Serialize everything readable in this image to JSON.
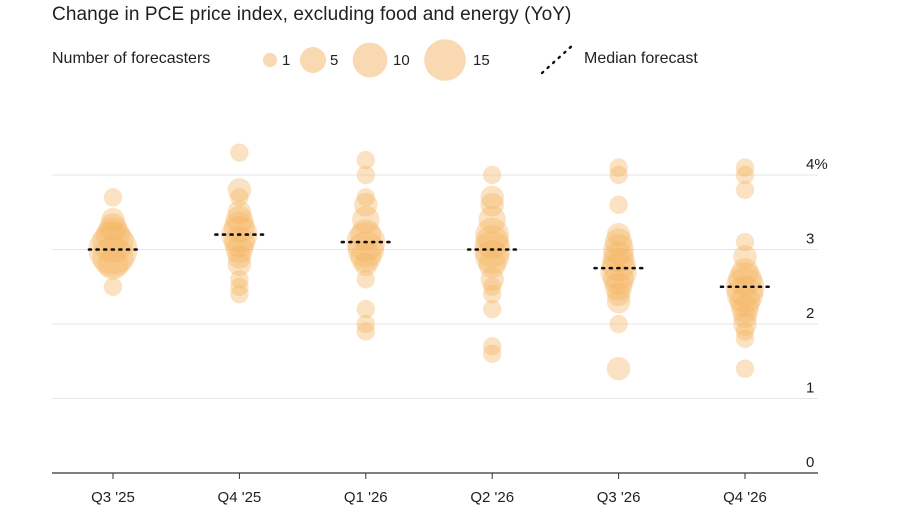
{
  "title": "Change in PCE price index, excluding food and energy (YoY)",
  "legend": {
    "size_label": "Number of forecasters",
    "sizes": [
      {
        "label": "1",
        "value": 1
      },
      {
        "label": "5",
        "value": 5
      },
      {
        "label": "10",
        "value": 10
      },
      {
        "label": "15",
        "value": 15
      }
    ],
    "median_label": "Median forecast"
  },
  "colors": {
    "bubble": "#f5b25e",
    "legend_bubble": "#f8d9b2",
    "grid": "#e6e6e6",
    "axis": "#333333",
    "median": "#111111"
  },
  "chart_data": {
    "type": "scatter",
    "title": "Change in PCE price index, excluding food and energy (YoY)",
    "xlabel": "",
    "ylabel": "",
    "categories": [
      "Q3 '25",
      "Q4 '25",
      "Q1 '26",
      "Q2 '26",
      "Q3 '26",
      "Q4 '26"
    ],
    "ylim": [
      0,
      4
    ],
    "yticks": [
      {
        "value": 0,
        "label": "0"
      },
      {
        "value": 1,
        "label": "1"
      },
      {
        "value": 2,
        "label": "2"
      },
      {
        "value": 3,
        "label": "3"
      },
      {
        "value": 4,
        "label": "4%"
      }
    ],
    "grid": true,
    "medians": [
      3.0,
      3.2,
      3.1,
      3.0,
      2.75,
      2.5
    ],
    "points": [
      [
        [
          3.7,
          1
        ],
        [
          3.4,
          2
        ],
        [
          3.3,
          3
        ],
        [
          3.2,
          5
        ],
        [
          3.1,
          8
        ],
        [
          3.0,
          12
        ],
        [
          2.9,
          8
        ],
        [
          2.8,
          4
        ],
        [
          2.5,
          1
        ]
      ],
      [
        [
          4.3,
          1
        ],
        [
          3.8,
          2
        ],
        [
          3.7,
          1
        ],
        [
          3.5,
          2
        ],
        [
          3.4,
          3
        ],
        [
          3.3,
          4
        ],
        [
          3.2,
          6
        ],
        [
          3.1,
          4
        ],
        [
          3.0,
          3
        ],
        [
          2.9,
          2
        ],
        [
          2.8,
          2
        ],
        [
          2.6,
          1
        ],
        [
          2.5,
          1
        ],
        [
          2.4,
          1
        ]
      ],
      [
        [
          4.2,
          1
        ],
        [
          4.0,
          1
        ],
        [
          3.7,
          1
        ],
        [
          3.6,
          2
        ],
        [
          3.4,
          3
        ],
        [
          3.2,
          4
        ],
        [
          3.1,
          7
        ],
        [
          3.0,
          6
        ],
        [
          2.9,
          4
        ],
        [
          2.8,
          2
        ],
        [
          2.6,
          1
        ],
        [
          2.2,
          1
        ],
        [
          2.0,
          1
        ],
        [
          1.9,
          1
        ]
      ],
      [
        [
          4.0,
          1
        ],
        [
          3.7,
          2
        ],
        [
          3.6,
          2
        ],
        [
          3.4,
          3
        ],
        [
          3.2,
          5
        ],
        [
          3.1,
          5
        ],
        [
          3.0,
          6
        ],
        [
          2.9,
          5
        ],
        [
          2.8,
          3
        ],
        [
          2.6,
          2
        ],
        [
          2.5,
          1
        ],
        [
          2.4,
          1
        ],
        [
          2.2,
          1
        ],
        [
          1.7,
          1
        ],
        [
          1.6,
          1
        ]
      ],
      [
        [
          4.1,
          1
        ],
        [
          4.0,
          1
        ],
        [
          3.6,
          1
        ],
        [
          3.2,
          2
        ],
        [
          3.1,
          3
        ],
        [
          3.0,
          4
        ],
        [
          2.9,
          4
        ],
        [
          2.8,
          5
        ],
        [
          2.7,
          6
        ],
        [
          2.6,
          4
        ],
        [
          2.5,
          3
        ],
        [
          2.4,
          2
        ],
        [
          2.3,
          2
        ],
        [
          2.0,
          1
        ],
        [
          1.4,
          2
        ]
      ],
      [
        [
          4.1,
          1
        ],
        [
          4.0,
          1
        ],
        [
          3.8,
          1
        ],
        [
          3.1,
          1
        ],
        [
          2.9,
          2
        ],
        [
          2.7,
          3
        ],
        [
          2.6,
          5
        ],
        [
          2.5,
          7
        ],
        [
          2.4,
          6
        ],
        [
          2.3,
          4
        ],
        [
          2.2,
          3
        ],
        [
          2.1,
          2
        ],
        [
          2.0,
          2
        ],
        [
          1.9,
          1
        ],
        [
          1.8,
          1
        ],
        [
          1.4,
          1
        ]
      ]
    ]
  }
}
